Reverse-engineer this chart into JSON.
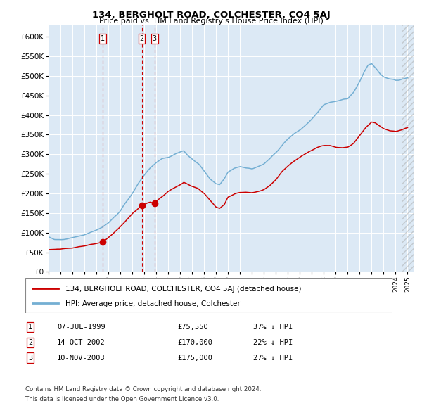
{
  "title": "134, BERGHOLT ROAD, COLCHESTER, CO4 5AJ",
  "subtitle": "Price paid vs. HM Land Registry's House Price Index (HPI)",
  "background_color": "#dce9f5",
  "plot_bg_color": "#dce9f5",
  "hpi_color": "#74afd3",
  "price_color": "#cc0000",
  "dashed_line_color": "#cc0000",
  "transactions": [
    {
      "label": "1",
      "date": "07-JUL-1999",
      "price": 75550,
      "note": "37% ↓ HPI",
      "x_year": 1999.52
    },
    {
      "label": "2",
      "date": "14-OCT-2002",
      "price": 170000,
      "note": "22% ↓ HPI",
      "x_year": 2002.79
    },
    {
      "label": "3",
      "date": "10-NOV-2003",
      "price": 175000,
      "note": "27% ↓ HPI",
      "x_year": 2003.86
    }
  ],
  "legend_label_price": "134, BERGHOLT ROAD, COLCHESTER, CO4 5AJ (detached house)",
  "legend_label_hpi": "HPI: Average price, detached house, Colchester",
  "footer_line1": "Contains HM Land Registry data © Crown copyright and database right 2024.",
  "footer_line2": "This data is licensed under the Open Government Licence v3.0.",
  "ylim": [
    0,
    630000
  ],
  "xlim_start": 1995.0,
  "xlim_end": 2025.5,
  "hpi_anchors": [
    [
      1995.0,
      88000
    ],
    [
      1995.5,
      84000
    ],
    [
      1996.0,
      83000
    ],
    [
      1996.5,
      84000
    ],
    [
      1997.0,
      87000
    ],
    [
      1997.5,
      91000
    ],
    [
      1998.0,
      95000
    ],
    [
      1998.5,
      100000
    ],
    [
      1999.0,
      107000
    ],
    [
      1999.5,
      114000
    ],
    [
      2000.0,
      124000
    ],
    [
      2000.5,
      140000
    ],
    [
      2001.0,
      155000
    ],
    [
      2001.5,
      178000
    ],
    [
      2002.0,
      200000
    ],
    [
      2002.5,
      225000
    ],
    [
      2003.0,
      248000
    ],
    [
      2003.5,
      265000
    ],
    [
      2004.0,
      278000
    ],
    [
      2004.5,
      288000
    ],
    [
      2005.0,
      292000
    ],
    [
      2005.5,
      300000
    ],
    [
      2006.0,
      305000
    ],
    [
      2006.3,
      308000
    ],
    [
      2006.7,
      295000
    ],
    [
      2007.0,
      288000
    ],
    [
      2007.5,
      275000
    ],
    [
      2008.0,
      258000
    ],
    [
      2008.5,
      238000
    ],
    [
      2009.0,
      225000
    ],
    [
      2009.3,
      222000
    ],
    [
      2009.7,
      238000
    ],
    [
      2010.0,
      255000
    ],
    [
      2010.5,
      265000
    ],
    [
      2011.0,
      270000
    ],
    [
      2011.5,
      265000
    ],
    [
      2012.0,
      263000
    ],
    [
      2012.5,
      268000
    ],
    [
      2013.0,
      275000
    ],
    [
      2013.5,
      288000
    ],
    [
      2014.0,
      305000
    ],
    [
      2014.5,
      322000
    ],
    [
      2015.0,
      340000
    ],
    [
      2015.5,
      352000
    ],
    [
      2016.0,
      362000
    ],
    [
      2016.5,
      375000
    ],
    [
      2017.0,
      390000
    ],
    [
      2017.5,
      408000
    ],
    [
      2018.0,
      425000
    ],
    [
      2018.5,
      432000
    ],
    [
      2019.0,
      435000
    ],
    [
      2019.5,
      438000
    ],
    [
      2020.0,
      442000
    ],
    [
      2020.5,
      458000
    ],
    [
      2021.0,
      485000
    ],
    [
      2021.3,
      505000
    ],
    [
      2021.7,
      525000
    ],
    [
      2022.0,
      530000
    ],
    [
      2022.3,
      520000
    ],
    [
      2022.7,
      505000
    ],
    [
      2023.0,
      498000
    ],
    [
      2023.5,
      492000
    ],
    [
      2024.0,
      488000
    ],
    [
      2024.5,
      492000
    ],
    [
      2025.0,
      495000
    ]
  ],
  "price_anchors": [
    [
      1995.0,
      56000
    ],
    [
      1996.0,
      58000
    ],
    [
      1997.0,
      61000
    ],
    [
      1998.0,
      66000
    ],
    [
      1999.0,
      72000
    ],
    [
      1999.52,
      75550
    ],
    [
      2000.0,
      87000
    ],
    [
      2001.0,
      115000
    ],
    [
      2002.0,
      148000
    ],
    [
      2002.79,
      170000
    ],
    [
      2003.0,
      172000
    ],
    [
      2003.5,
      178000
    ],
    [
      2003.86,
      175000
    ],
    [
      2004.0,
      180000
    ],
    [
      2004.5,
      192000
    ],
    [
      2005.0,
      205000
    ],
    [
      2005.5,
      215000
    ],
    [
      2006.0,
      222000
    ],
    [
      2006.3,
      228000
    ],
    [
      2006.7,
      222000
    ],
    [
      2007.0,
      218000
    ],
    [
      2007.5,
      212000
    ],
    [
      2008.0,
      200000
    ],
    [
      2008.5,
      182000
    ],
    [
      2009.0,
      165000
    ],
    [
      2009.3,
      162000
    ],
    [
      2009.7,
      172000
    ],
    [
      2010.0,
      190000
    ],
    [
      2010.5,
      198000
    ],
    [
      2011.0,
      203000
    ],
    [
      2011.5,
      203000
    ],
    [
      2012.0,
      202000
    ],
    [
      2012.5,
      205000
    ],
    [
      2013.0,
      210000
    ],
    [
      2013.5,
      220000
    ],
    [
      2014.0,
      235000
    ],
    [
      2014.5,
      255000
    ],
    [
      2015.0,
      270000
    ],
    [
      2015.5,
      282000
    ],
    [
      2016.0,
      292000
    ],
    [
      2016.5,
      302000
    ],
    [
      2017.0,
      310000
    ],
    [
      2017.5,
      318000
    ],
    [
      2018.0,
      322000
    ],
    [
      2018.5,
      323000
    ],
    [
      2019.0,
      318000
    ],
    [
      2019.5,
      317000
    ],
    [
      2020.0,
      318000
    ],
    [
      2020.5,
      328000
    ],
    [
      2021.0,
      348000
    ],
    [
      2021.5,
      368000
    ],
    [
      2022.0,
      382000
    ],
    [
      2022.3,
      380000
    ],
    [
      2022.7,
      372000
    ],
    [
      2023.0,
      365000
    ],
    [
      2023.5,
      360000
    ],
    [
      2024.0,
      358000
    ],
    [
      2024.5,
      362000
    ],
    [
      2025.0,
      368000
    ]
  ]
}
